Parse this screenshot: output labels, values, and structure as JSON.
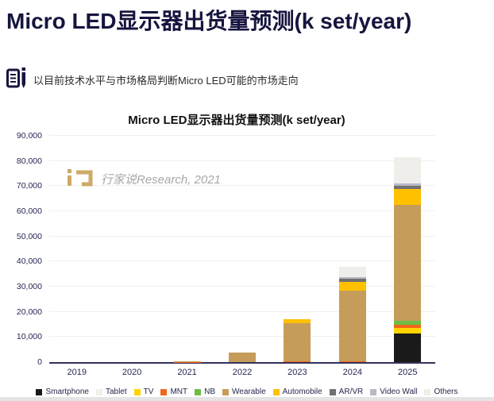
{
  "page": {
    "title": "Micro LED显示器出货量预测(k set/year)",
    "subtitle": "以目前技术水平与市场格局判断Micro LED可能的市场走向",
    "watermark": "行家说Research, 2021"
  },
  "colors": {
    "title_navy": "#15153F",
    "axis_text": "#262655",
    "axis_line": "#33335C",
    "gridline": "#F0F0F0",
    "watermark_gold": "#C9A158",
    "watermark_text": "#9E9E9E"
  },
  "chart_data": {
    "type": "bar",
    "stacked": true,
    "title": "Micro LED显示器出货量预测(k set/year)",
    "categories": [
      "2019",
      "2020",
      "2021",
      "2022",
      "2023",
      "2024",
      "2025"
    ],
    "series": [
      {
        "name": "Smartphone",
        "color": "#1A1A1A",
        "values": [
          0,
          0,
          0,
          0,
          0,
          0,
          11500
        ]
      },
      {
        "name": "Tablet",
        "color": "#F2F0EC",
        "values": [
          0,
          0,
          0,
          0,
          0,
          0,
          0
        ]
      },
      {
        "name": "TV",
        "color": "#FFD400",
        "values": [
          0,
          0,
          0,
          0,
          0,
          0,
          2000
        ]
      },
      {
        "name": "MNT",
        "color": "#F2661C",
        "values": [
          0,
          0,
          50,
          0,
          200,
          300,
          1500
        ]
      },
      {
        "name": "NB",
        "color": "#6CBE44",
        "values": [
          0,
          0,
          0,
          0,
          0,
          0,
          1500
        ]
      },
      {
        "name": "Wearable",
        "color": "#C69C5A",
        "values": [
          0,
          0,
          400,
          3800,
          15300,
          28200,
          46000
        ]
      },
      {
        "name": "Automobile",
        "color": "#FFC000",
        "values": [
          0,
          0,
          0,
          0,
          1500,
          3500,
          6300
        ]
      },
      {
        "name": "AR/VR",
        "color": "#707070",
        "values": [
          0,
          0,
          0,
          0,
          0,
          1200,
          1400
        ]
      },
      {
        "name": "Video Wall",
        "color": "#B9B9C9",
        "values": [
          0,
          0,
          0,
          0,
          0,
          500,
          800
        ]
      },
      {
        "name": "Others",
        "color": "#EFEEEA",
        "values": [
          0,
          0,
          0,
          0,
          0,
          4300,
          10500
        ]
      }
    ],
    "totals": [
      0,
      0,
      450,
      3800,
      17000,
      38000,
      81500
    ],
    "ylim": [
      0,
      90000
    ],
    "y_ticks": [
      "0",
      "10,000",
      "20,000",
      "30,000",
      "40,000",
      "50,000",
      "60,000",
      "70,000",
      "80,000",
      "90,000"
    ],
    "xlabel": "",
    "ylabel": "",
    "grid": true,
    "legend_position": "bottom"
  }
}
